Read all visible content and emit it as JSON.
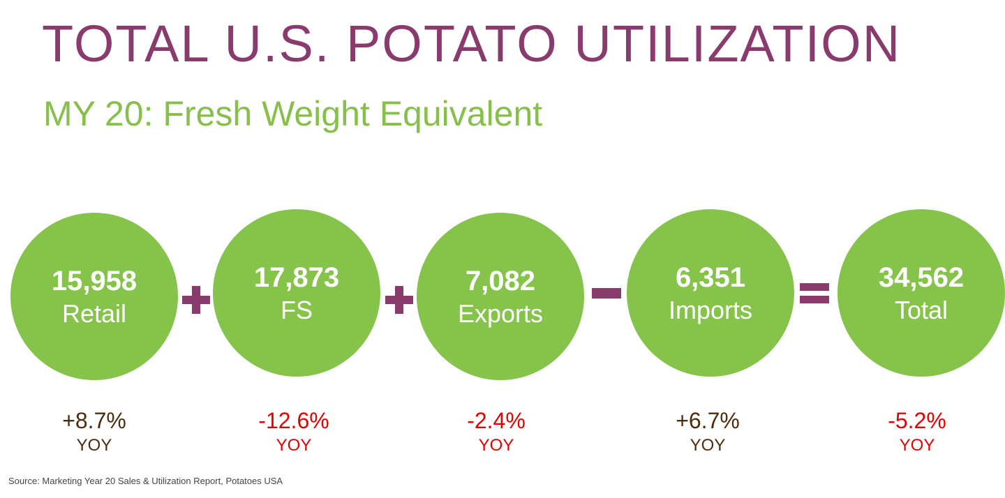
{
  "title": "TOTAL U.S. POTATO UTILIZATION",
  "subtitle": "MY 20: Fresh Weight Equivalent",
  "items": [
    {
      "value": "15,958",
      "label": "Retail",
      "change": "+8.7%",
      "yoy": "YOY",
      "trend_color": "#4e2b0c"
    },
    {
      "value": "17,873",
      "label": "FS",
      "change": "-12.6%",
      "yoy": "YOY",
      "trend_color": "#e40000"
    },
    {
      "value": "7,082",
      "label": "Exports",
      "change": "-2.4%",
      "yoy": "YOY",
      "trend_color": "#e40000"
    },
    {
      "value": "6,351",
      "label": "Imports",
      "change": "+6.7%",
      "yoy": "YOY",
      "trend_color": "#4e2b0c"
    },
    {
      "value": "34,562",
      "label": "Total",
      "change": "-5.2%",
      "yoy": "YOY",
      "trend_color": "#e40000"
    }
  ],
  "operators": [
    "plus-icon",
    "plus-icon",
    "minus-icon",
    "equals-icon"
  ],
  "source": "Source:  Marketing Year 20 Sales & Utilization Report, Potatoes USA",
  "colors": {
    "title": "#8a3b6d",
    "subtitle": "#86c04a",
    "circle": "#86c34a",
    "operator": "#8a3b6d"
  }
}
